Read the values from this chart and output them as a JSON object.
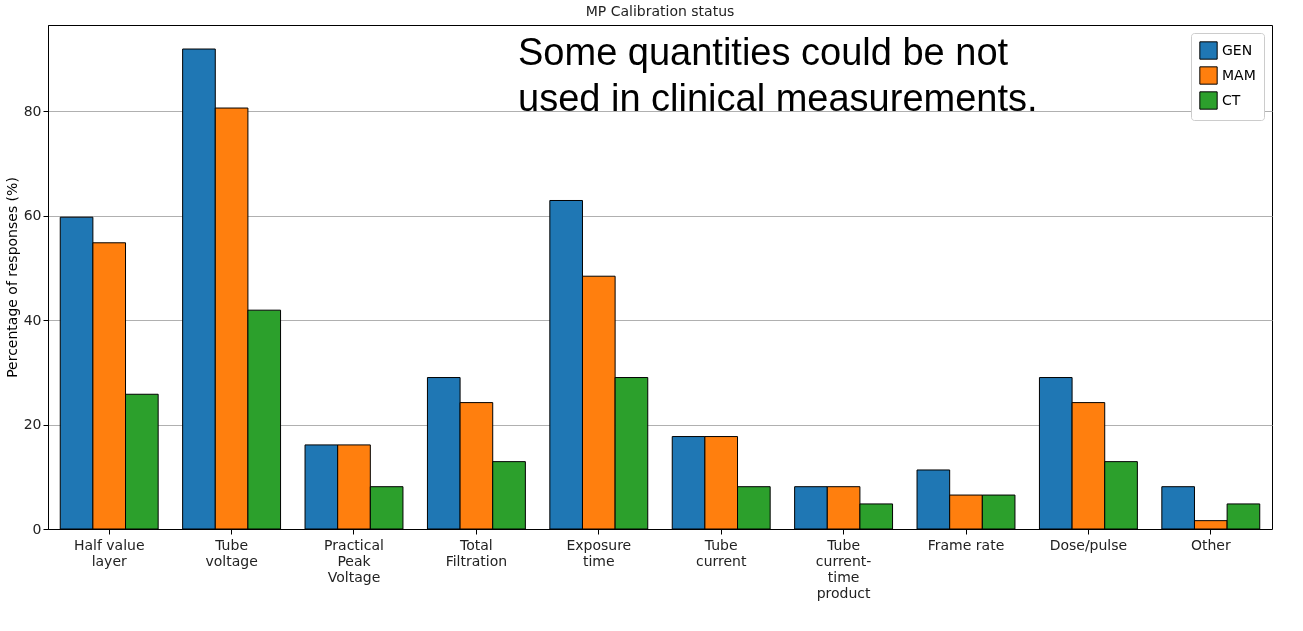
{
  "chart_data": {
    "type": "bar",
    "title": "MP Calibration status",
    "ylabel": "Percentage of responses (%)",
    "categories": [
      "Half value layer",
      "Tube voltage",
      "Practical Peak Voltage",
      "Total Filtration",
      "Exposure time",
      "Tube current",
      "Tube current-time product",
      "Frame rate",
      "Dose/pulse",
      "Other"
    ],
    "series": [
      {
        "name": "GEN",
        "color": "#1f77b4",
        "values": [
          59.7,
          91.9,
          16.1,
          29.0,
          62.9,
          17.7,
          8.1,
          11.3,
          29.0,
          8.1
        ]
      },
      {
        "name": "MAM",
        "color": "#ff7f0e",
        "values": [
          54.8,
          80.6,
          16.1,
          24.2,
          48.4,
          17.7,
          8.1,
          6.5,
          24.2,
          1.6
        ]
      },
      {
        "name": "CT",
        "color": "#2ca02c",
        "values": [
          25.8,
          41.9,
          8.1,
          12.9,
          29.0,
          8.1,
          4.8,
          6.5,
          12.9,
          4.8
        ]
      }
    ],
    "ylim": [
      0,
      96.5
    ],
    "yticks": [
      0,
      20,
      40,
      60,
      80
    ],
    "grid": "y",
    "legend": "top right",
    "annotations": [
      "Some quantities could be not used in clinical measurements."
    ]
  }
}
